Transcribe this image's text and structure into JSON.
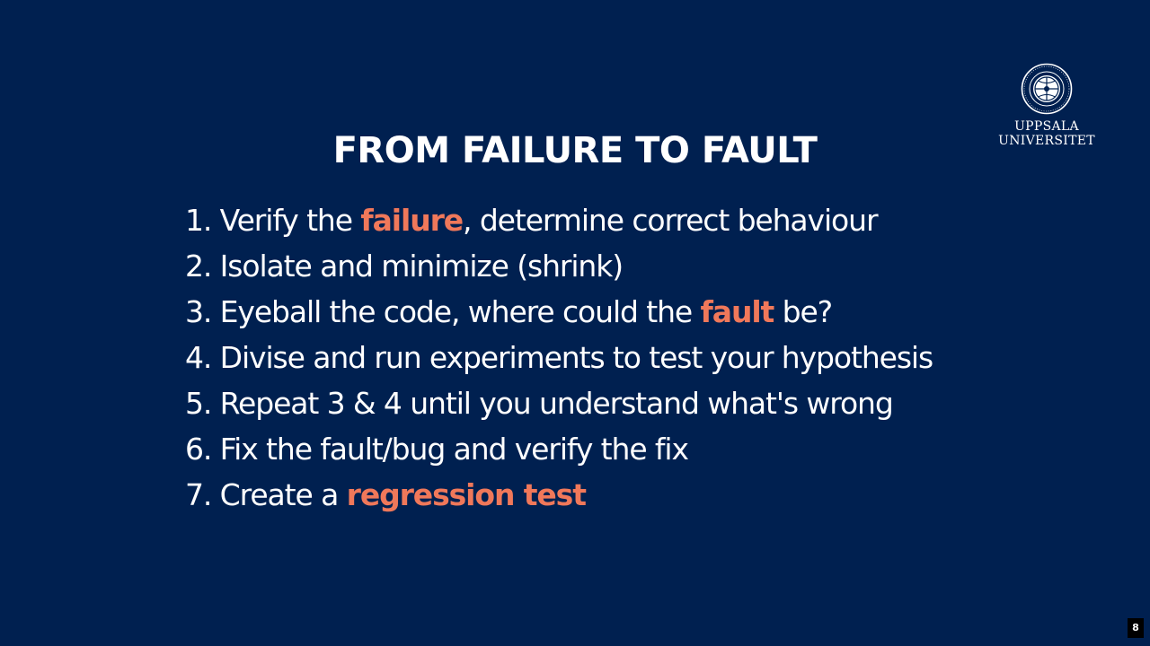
{
  "slide": {
    "title": "FROM FAILURE TO FAULT",
    "page_number": "8",
    "logo": {
      "icon": "university-seal-icon",
      "line1": "UPPSALA",
      "line2": "UNIVERSITET"
    },
    "steps": [
      {
        "before": "1. Verify the ",
        "highlight": "failure",
        "after": ", determine correct behaviour"
      },
      {
        "before": "2. Isolate and minimize (shrink)",
        "highlight": "",
        "after": ""
      },
      {
        "before": "3. Eyeball the code, where could the ",
        "highlight": "fault",
        "after": " be?"
      },
      {
        "before": "4. Divise and run experiments to test your hypothesis",
        "highlight": "",
        "after": ""
      },
      {
        "before": "5. Repeat 3 & 4 until you understand what's wrong",
        "highlight": "",
        "after": ""
      },
      {
        "before": "6. Fix the fault/bug and verify the fix",
        "highlight": "",
        "after": ""
      },
      {
        "before": "7. Create a ",
        "highlight": "regression test",
        "after": ""
      }
    ]
  },
  "colors": {
    "background": "#002050",
    "text": "#ffffff",
    "accent": "#f0785a"
  }
}
